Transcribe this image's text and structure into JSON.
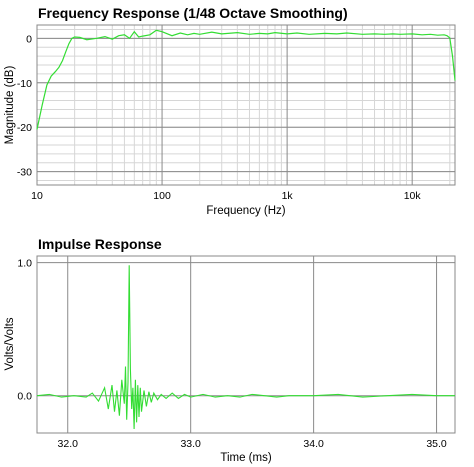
{
  "chart_data": [
    {
      "type": "line",
      "title": "Frequency Response (1/48 Octave Smoothing)",
      "xlabel": "Frequency (Hz)",
      "ylabel": "Magnitude (dB)",
      "x_scale": "log",
      "xlim": [
        10,
        22000
      ],
      "ylim": [
        -33,
        3
      ],
      "x_ticks": [
        10,
        100,
        1000,
        10000
      ],
      "x_tick_labels": [
        "10",
        "100",
        "1k",
        "10k"
      ],
      "y_ticks": [
        0,
        -10,
        -20,
        -30
      ],
      "y_tick_labels": [
        "0",
        "-10",
        "-20",
        "-30"
      ],
      "grid": true,
      "line_color": "#33dd33",
      "series": [
        {
          "x": [
            10,
            11,
            12,
            13,
            14,
            15,
            16,
            17,
            18,
            19,
            20,
            22,
            25,
            30,
            35,
            40,
            45,
            50,
            55,
            60,
            65,
            70,
            80,
            90,
            100,
            120,
            140,
            160,
            180,
            200,
            250,
            300,
            400,
            500,
            600,
            700,
            800,
            1000,
            1200,
            1500,
            2000,
            2500,
            3000,
            4000,
            5000,
            6000,
            7000,
            8000,
            10000,
            12000,
            14000,
            16000,
            18000,
            19000,
            20000,
            21000,
            22000
          ],
          "y": [
            -20.5,
            -15,
            -10.5,
            -8.5,
            -7.5,
            -6.5,
            -5,
            -3,
            -1.2,
            0,
            0.3,
            0.2,
            -0.3,
            0,
            0.4,
            -0.2,
            0.6,
            0.8,
            0,
            1.5,
            0.3,
            0.5,
            0.8,
            1.8,
            1.5,
            0.6,
            1.2,
            0.8,
            1.1,
            0.9,
            1.4,
            1,
            1.3,
            0.9,
            1.1,
            1.0,
            1.3,
            1.0,
            1.2,
            0.9,
            1.1,
            1.0,
            1.2,
            0.9,
            1.0,
            0.9,
            1.0,
            0.9,
            1.0,
            0.8,
            0.9,
            0.7,
            0.8,
            0.6,
            0.1,
            -4,
            -9.5
          ]
        }
      ]
    },
    {
      "type": "line",
      "title": "Impulse Response",
      "xlabel": "Time (ms)",
      "ylabel": "Volts/Volts",
      "xlim": [
        31.75,
        35.15
      ],
      "ylim": [
        -0.28,
        1.05
      ],
      "x_ticks": [
        32.0,
        33.0,
        34.0,
        35.0
      ],
      "x_tick_labels": [
        "32.0",
        "33.0",
        "34.0",
        "35.0"
      ],
      "y_ticks": [
        1.0,
        0.0
      ],
      "y_tick_labels": [
        "1.0",
        "0.0"
      ],
      "grid": true,
      "line_color": "#33dd33",
      "series": [
        {
          "x": [
            31.75,
            31.85,
            31.95,
            32.05,
            32.15,
            32.2,
            32.25,
            32.3,
            32.33,
            32.36,
            32.38,
            32.4,
            32.42,
            32.44,
            32.46,
            32.47,
            32.48,
            32.49,
            32.5,
            32.51,
            32.52,
            32.53,
            32.54,
            32.55,
            32.56,
            32.57,
            32.58,
            32.59,
            32.6,
            32.62,
            32.64,
            32.66,
            32.68,
            32.7,
            32.73,
            32.76,
            32.8,
            32.85,
            32.9,
            32.95,
            33.0,
            33.1,
            33.2,
            33.3,
            33.4,
            33.5,
            33.6,
            33.7,
            33.8,
            34.0,
            34.2,
            34.4,
            34.6,
            34.8,
            35.0,
            35.15
          ],
          "y": [
            0.0,
            0.01,
            -0.01,
            0.0,
            -0.01,
            0.02,
            -0.04,
            0.06,
            -0.1,
            0.08,
            -0.12,
            0.04,
            -0.15,
            0.12,
            -0.06,
            0.22,
            -0.18,
            0.1,
            0.98,
            0.2,
            -0.1,
            0.06,
            -0.25,
            0.12,
            -0.2,
            0.08,
            -0.16,
            0.06,
            -0.12,
            0.04,
            -0.08,
            0.03,
            -0.05,
            0.02,
            -0.03,
            0.01,
            -0.02,
            0.02,
            -0.02,
            0.01,
            -0.01,
            0.01,
            -0.01,
            0.0,
            -0.01,
            0.01,
            0.0,
            -0.01,
            0.0,
            0.0,
            0.01,
            -0.01,
            0.0,
            0.01,
            0.0,
            0.0
          ]
        }
      ]
    }
  ]
}
